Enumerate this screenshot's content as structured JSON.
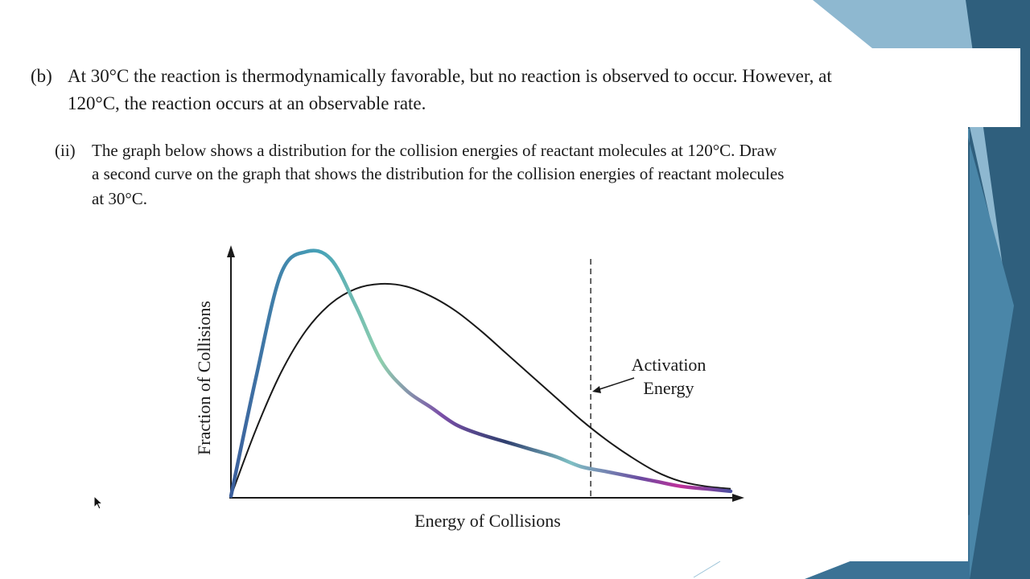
{
  "question": {
    "part_b_label": "(b)",
    "part_b_line1": "At 30°C the reaction is thermodynamically favorable, but no reaction is observed to occur. However, at",
    "part_b_line2": "120°C, the reaction occurs at an observable rate.",
    "part_ii_label": "(ii)",
    "part_ii_line1": "The graph below shows a distribution for the collision energies of reactant molecules at 120°C. Draw",
    "part_ii_line2": "a second curve on the graph that shows the distribution for the collision energies of reactant molecules",
    "part_ii_line3": "at 30°C."
  },
  "chart_data": {
    "type": "line",
    "xlabel": "Energy of Collisions",
    "ylabel": "Fraction of Collisions",
    "annotation_line1": "Activation",
    "annotation_line2": "Energy",
    "x": [
      0,
      0.05,
      0.1,
      0.15,
      0.2,
      0.25,
      0.3,
      0.35,
      0.4,
      0.45,
      0.5,
      0.55,
      0.6,
      0.65,
      0.7,
      0.75,
      0.8,
      0.85,
      0.9,
      0.95,
      1.0
    ],
    "series": [
      {
        "values": [
          0,
          0.27,
          0.5,
          0.67,
          0.78,
          0.84,
          0.86,
          0.85,
          0.81,
          0.75,
          0.67,
          0.58,
          0.49,
          0.4,
          0.31,
          0.23,
          0.16,
          0.1,
          0.06,
          0.04,
          0.03
        ]
      },
      {
        "values": [
          0,
          0.48,
          0.9,
          0.99,
          0.96,
          0.77,
          0.55,
          0.43,
          0.36,
          0.29,
          0.25,
          0.22,
          0.19,
          0.16,
          0.12,
          0.1,
          0.08,
          0.06,
          0.04,
          0.03,
          0.02
        ]
      }
    ],
    "activation_energy_x": 0.72,
    "series_colors": [
      "#1a1a1a",
      "#5a3b8c"
    ],
    "grid": false
  },
  "colors": {
    "decor_dark": "#2f5f7d",
    "decor_mid": "#4a86a8",
    "decor_light": "#8eb8d0"
  }
}
